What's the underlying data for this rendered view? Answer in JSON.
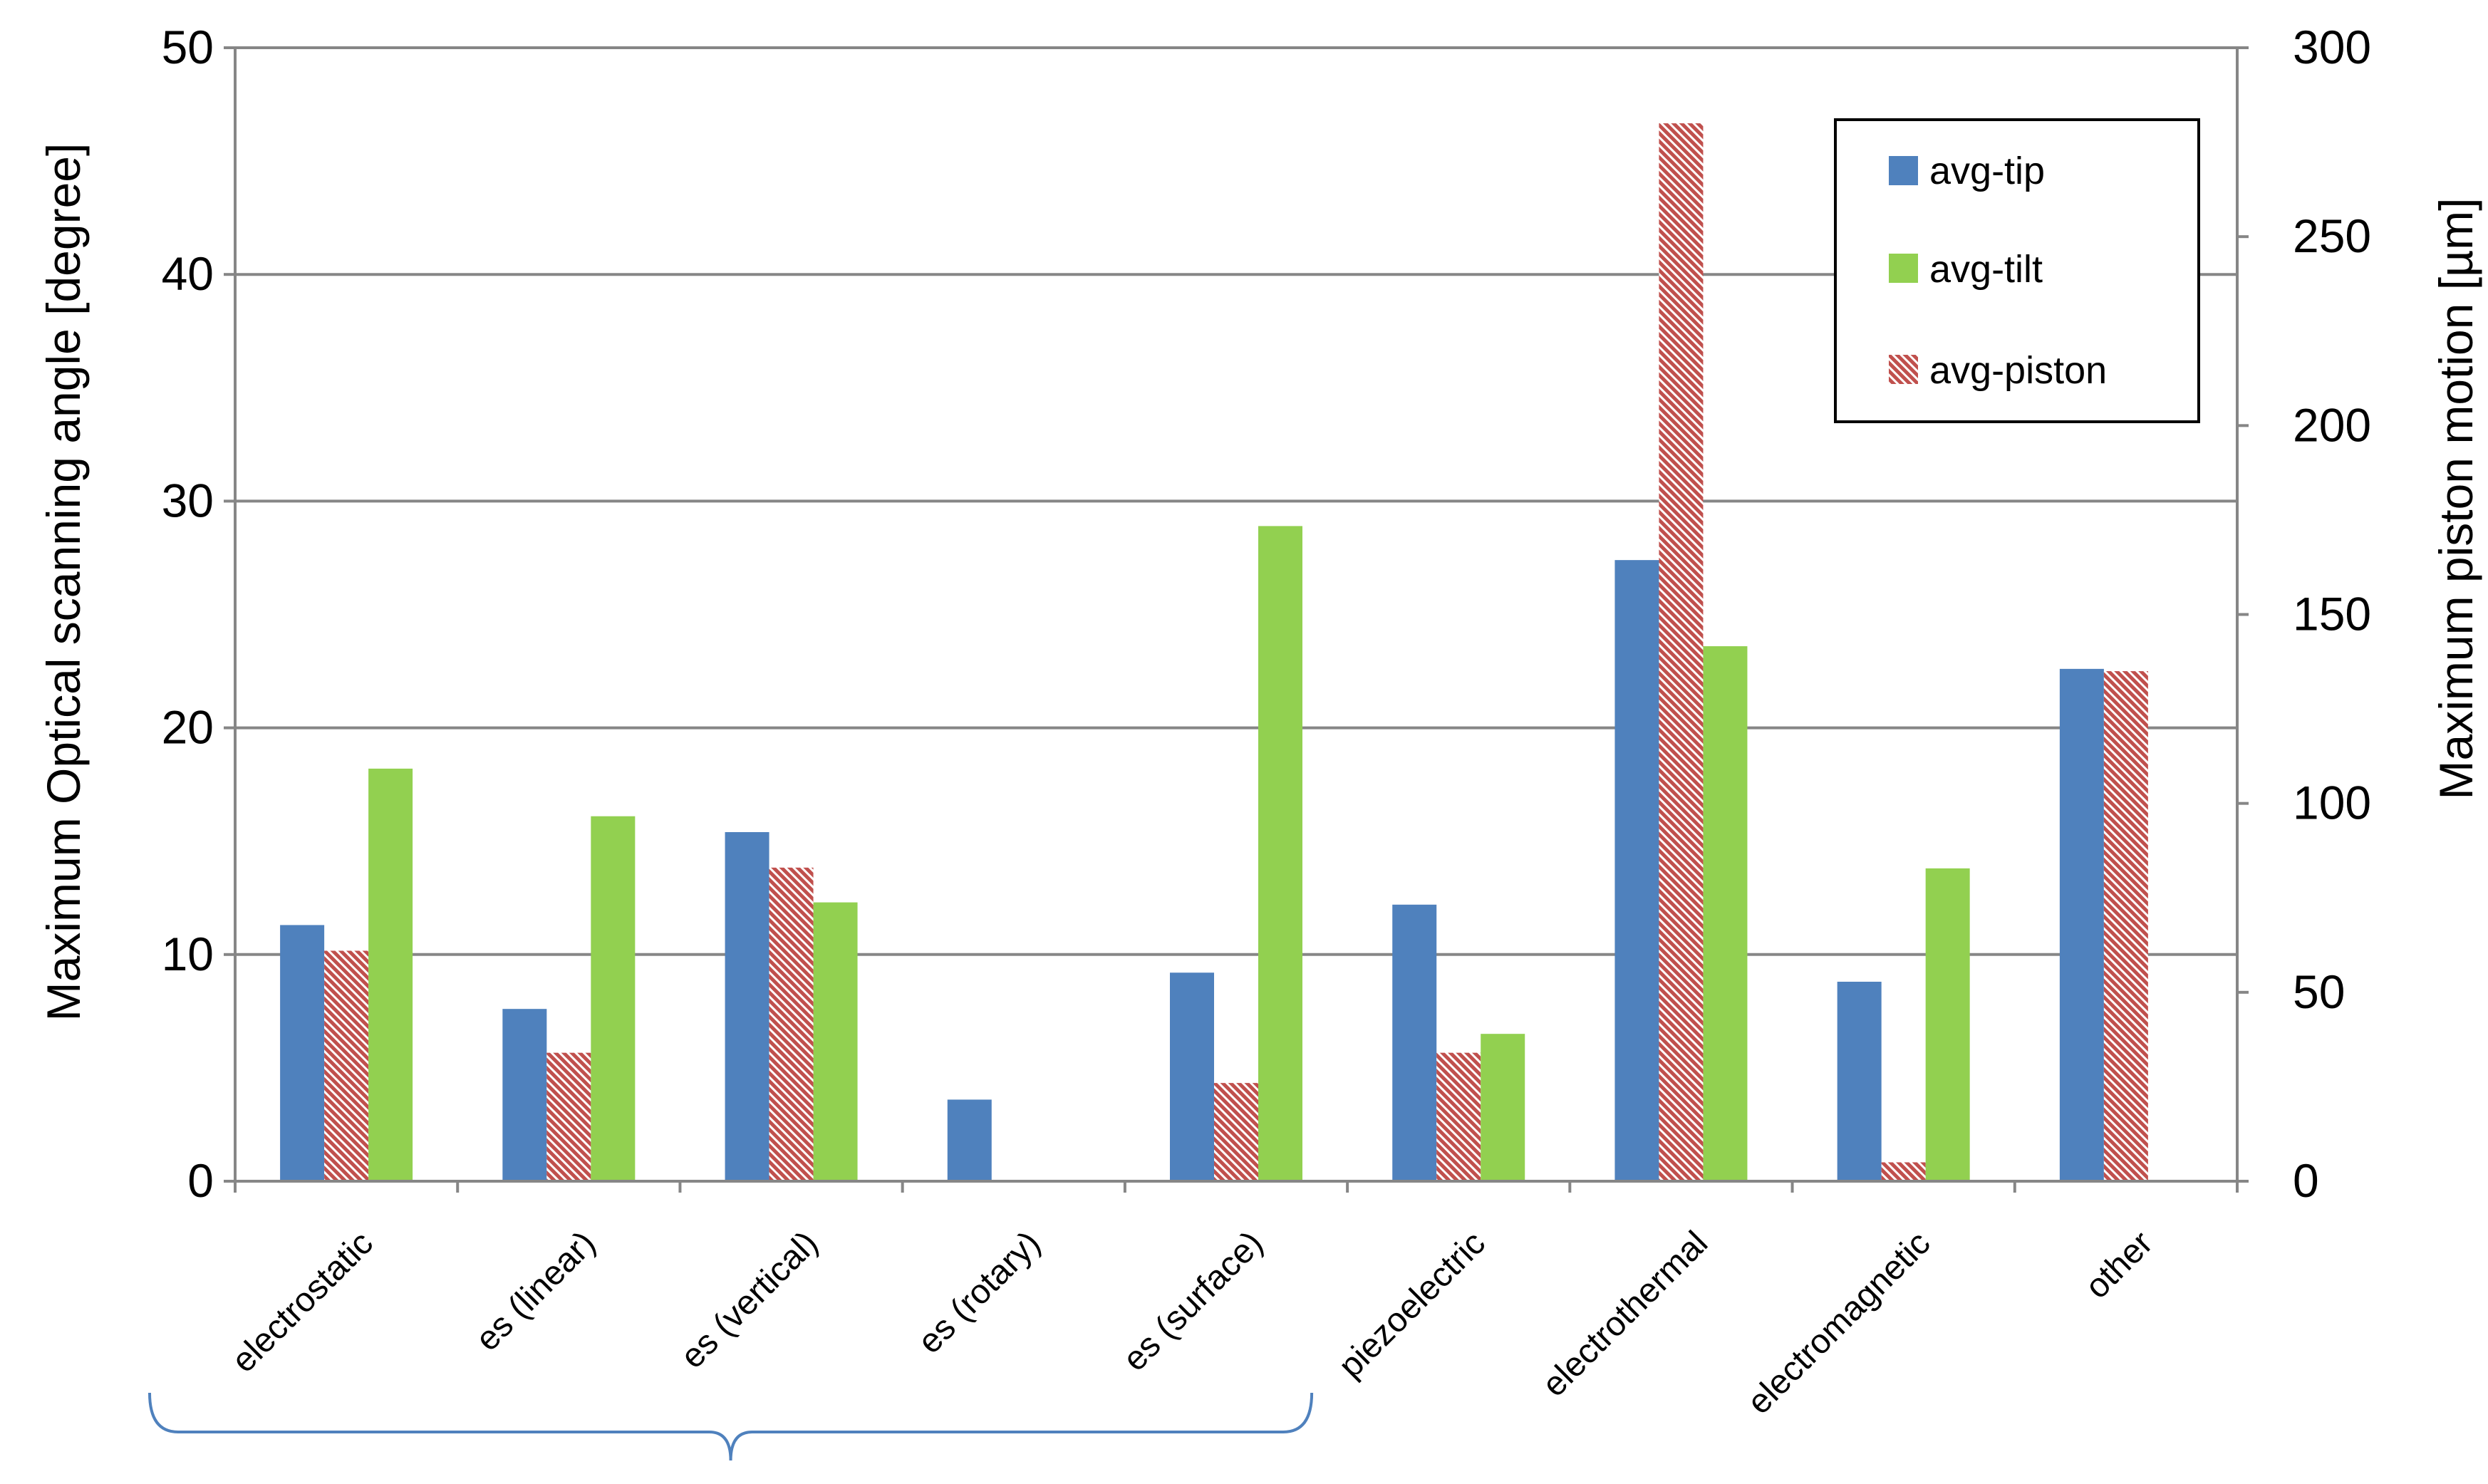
{
  "chart_data": {
    "type": "bar",
    "categories": [
      "electrostatic",
      "es (linear)",
      "es (vertical)",
      "es (rotary)",
      "es (surface)",
      "piezoelectric",
      "electrothermal",
      "electromagnetic",
      "other"
    ],
    "series": [
      {
        "name": "avg-tip",
        "axis": "left",
        "color": "#4f81bd",
        "pattern": "solid",
        "values": [
          11.3,
          7.6,
          15.4,
          3.6,
          9.2,
          12.2,
          27.4,
          8.8,
          22.6
        ]
      },
      {
        "name": "avg-piston",
        "axis": "right",
        "color": "#c0504d",
        "pattern": "diagonal-hatch",
        "values": [
          61,
          34,
          83,
          null,
          26,
          34,
          280,
          5,
          135
        ]
      },
      {
        "name": "avg-tilt",
        "axis": "left",
        "color": "#92d050",
        "pattern": "solid",
        "values": [
          18.2,
          16.1,
          12.3,
          null,
          28.9,
          6.5,
          23.6,
          13.8,
          null
        ]
      }
    ],
    "bar_order": [
      "avg-tip",
      "avg-piston",
      "avg-tilt"
    ],
    "legend": {
      "position": "top-right",
      "entries": [
        {
          "label": "avg-tip",
          "color": "#4f81bd",
          "pattern": "solid"
        },
        {
          "label": "avg-tilt",
          "color": "#92d050",
          "pattern": "solid"
        },
        {
          "label": "avg-piston",
          "color": "#c0504d",
          "pattern": "diagonal-hatch"
        }
      ]
    },
    "y_left": {
      "label": "Maximum Optical scanning angle [degree]",
      "ylim": [
        0,
        50
      ],
      "ticks": [
        "0",
        "10",
        "20",
        "30",
        "40",
        "50"
      ]
    },
    "y_right": {
      "label": "Maximum piston motion [µm]",
      "ylim": [
        0,
        300
      ],
      "ticks": [
        "0",
        "50",
        "100",
        "150",
        "200",
        "250",
        "300"
      ]
    },
    "grid": true,
    "gridline_color": "#868686",
    "brace": {
      "spans_categories": [
        0,
        4
      ],
      "color": "#4f81bd"
    }
  }
}
